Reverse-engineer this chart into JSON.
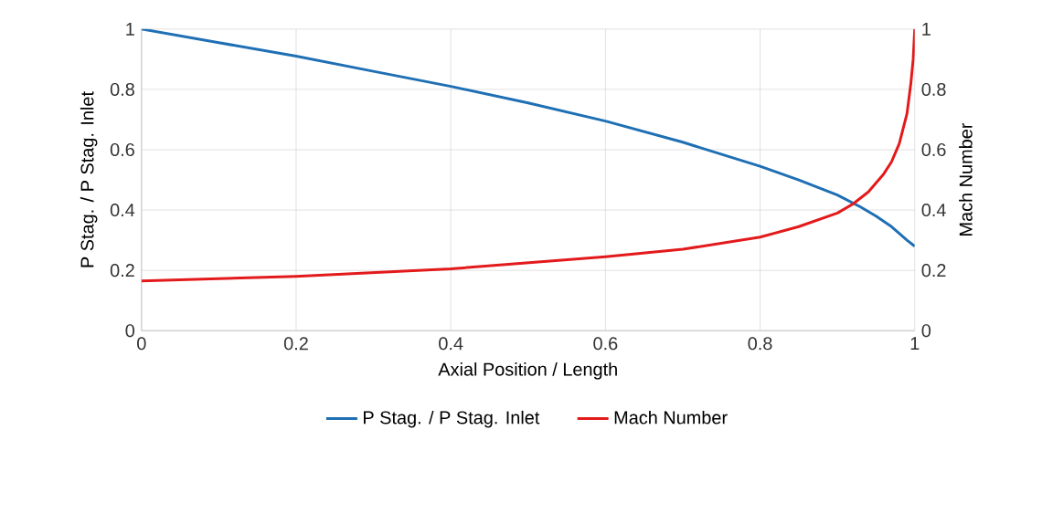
{
  "chart_data": {
    "type": "line",
    "xlabel": "Axial Position / Length",
    "ylabel": "P Stag. / P Stag. Inlet",
    "y2label": "Mach Number",
    "xlim": [
      0,
      1
    ],
    "xticks": [
      0,
      0.2,
      0.4,
      0.6,
      0.8,
      1
    ],
    "ylim": [
      0,
      1
    ],
    "yticks": [
      0,
      0.2,
      0.4,
      0.6,
      0.8,
      1
    ],
    "y2lim": [
      0,
      1
    ],
    "y2ticks": [
      0,
      0.2,
      0.4,
      0.6,
      0.8,
      1
    ],
    "grid": true,
    "legend": "bottom",
    "marker": "none",
    "series": [
      {
        "name": "P Stag. / P Stag. Inlet",
        "color": "#1f6fb4",
        "x": [
          0,
          0.1,
          0.2,
          0.3,
          0.4,
          0.5,
          0.6,
          0.7,
          0.8,
          0.85,
          0.9,
          0.93,
          0.95,
          0.97,
          0.99,
          1
        ],
        "values": [
          1,
          0.955,
          0.91,
          0.86,
          0.81,
          0.755,
          0.695,
          0.625,
          0.545,
          0.5,
          0.45,
          0.41,
          0.38,
          0.345,
          0.3,
          0.28
        ]
      },
      {
        "name": "Mach Number",
        "color": "#e31a1c",
        "axis": "y2",
        "x": [
          0,
          0.2,
          0.4,
          0.6,
          0.7,
          0.8,
          0.85,
          0.9,
          0.92,
          0.94,
          0.96,
          0.97,
          0.98,
          0.99,
          0.995,
          0.998,
          1
        ],
        "values": [
          0.165,
          0.18,
          0.205,
          0.245,
          0.27,
          0.31,
          0.345,
          0.39,
          0.42,
          0.46,
          0.52,
          0.56,
          0.62,
          0.72,
          0.82,
          0.9,
          1
        ]
      }
    ]
  }
}
